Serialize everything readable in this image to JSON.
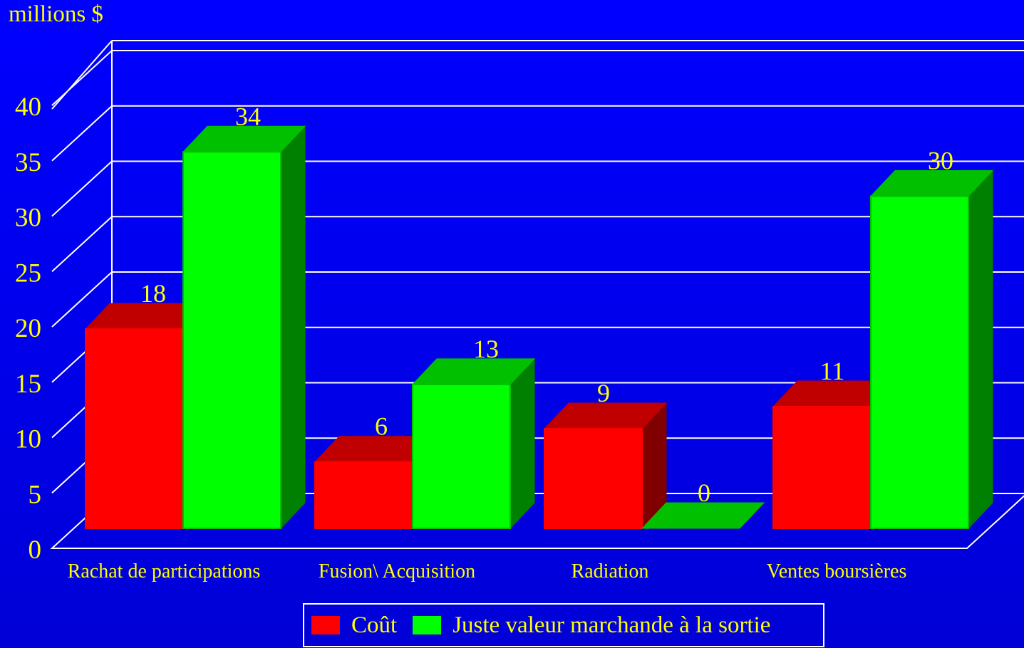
{
  "chart_data": {
    "type": "bar",
    "ylabel": "millions $",
    "ylim": [
      0,
      40
    ],
    "yticks": [
      "0",
      "5",
      "10",
      "15",
      "20",
      "25",
      "30",
      "35",
      "40"
    ],
    "categories": [
      "Rachat de participations",
      "Fusion\\ Acquisition",
      "Radiation",
      "Ventes boursières"
    ],
    "series": [
      {
        "name": "Coût",
        "values": [
          18,
          6,
          9,
          11
        ],
        "labels": [
          "18",
          "6",
          "9",
          "11"
        ],
        "color": "#ff0000",
        "top_color": "#c00000",
        "side_color": "#800000"
      },
      {
        "name": "Juste valeur marchande à la sortie",
        "values": [
          34,
          13,
          0,
          30
        ],
        "labels": [
          "34",
          "13",
          "0",
          "30"
        ],
        "color": "#00ff00",
        "top_color": "#00c000",
        "side_color": "#008000"
      }
    ],
    "grid": true,
    "legend": "bottom-center",
    "three_d": true
  },
  "colors": {
    "background": "#0000f0",
    "axis_text": "#ffff00",
    "gridline": "#ffffff"
  }
}
